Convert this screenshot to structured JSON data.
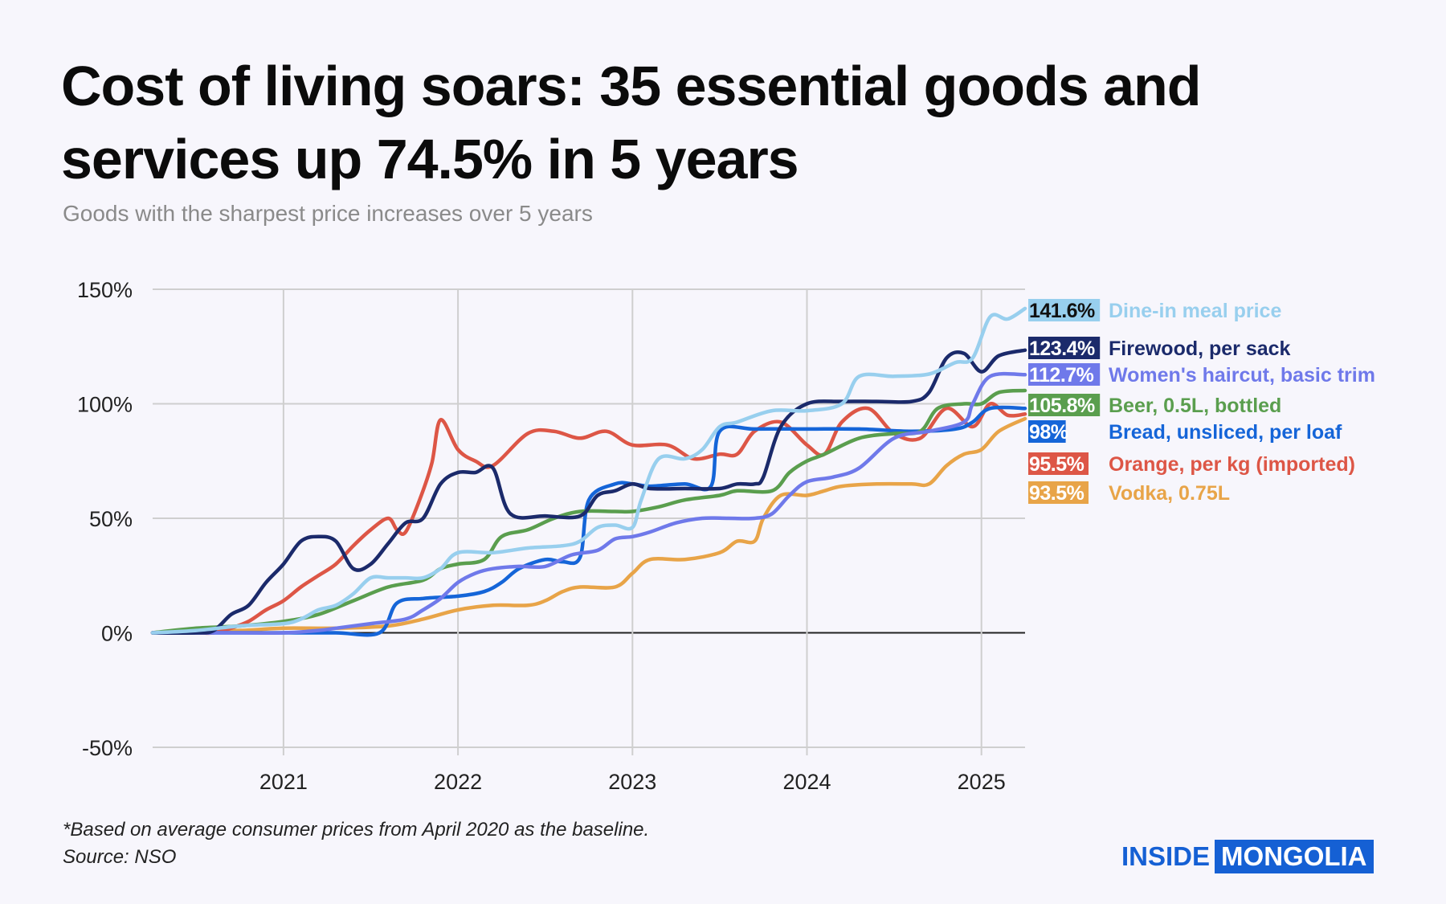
{
  "header": {
    "title": "Cost of living soars: 35 essential goods and services up 74.5% in 5 years",
    "subtitle": "Goods with the sharpest price increases over 5 years"
  },
  "footer": {
    "note": "*Based on average consumer prices from April 2020 as the baseline.",
    "source": "Source: NSO",
    "logo_left": "INSIDE",
    "logo_right": "MONGOLIA"
  },
  "chart_data": {
    "type": "line",
    "title": "Cost of living soars: 35 essential goods and services up 74.5% in 5 years",
    "subtitle": "Goods with the sharpest price increases over 5 years",
    "xlabel": "",
    "ylabel": "",
    "xlim": [
      2020.25,
      2025.25
    ],
    "ylim": [
      -50,
      150
    ],
    "yticks": [
      -50,
      0,
      50,
      100,
      150
    ],
    "ytick_labels": [
      "-50%",
      "0%",
      "50%",
      "100%",
      "150%"
    ],
    "xticks": [
      2021,
      2022,
      2023,
      2024,
      2025
    ],
    "xtick_labels": [
      "2021",
      "2022",
      "2023",
      "2024",
      "2025"
    ],
    "grid": true,
    "legend": "right-end labels",
    "series": [
      {
        "name": "Dine-in meal price",
        "label": "141.6%",
        "color": "#98cfee",
        "x": [
          2020.25,
          2020.5,
          2020.75,
          2021,
          2021.1,
          2021.2,
          2021.3,
          2021.4,
          2021.5,
          2021.6,
          2021.7,
          2021.8,
          2021.9,
          2022,
          2022.2,
          2022.4,
          2022.6,
          2022.7,
          2022.8,
          2022.9,
          2023,
          2023.05,
          2023.15,
          2023.3,
          2023.4,
          2023.5,
          2023.6,
          2023.8,
          2024,
          2024.2,
          2024.3,
          2024.5,
          2024.7,
          2024.85,
          2024.95,
          2025.05,
          2025.15,
          2025.25
        ],
        "y": [
          0,
          1,
          3,
          4,
          6,
          10,
          12,
          17,
          24,
          24,
          24,
          24,
          28,
          35,
          35,
          37,
          38,
          40,
          46,
          47,
          46,
          58,
          76,
          76,
          80,
          90,
          92,
          97,
          97,
          100,
          112,
          112,
          113,
          118,
          120,
          138,
          137,
          141.6
        ]
      },
      {
        "name": "Firewood, per sack",
        "label": "123.4%",
        "color": "#1b2a6b",
        "x": [
          2020.25,
          2020.5,
          2020.6,
          2020.7,
          2020.8,
          2020.9,
          2021,
          2021.1,
          2021.2,
          2021.3,
          2021.4,
          2021.5,
          2021.6,
          2021.7,
          2021.8,
          2021.9,
          2022,
          2022.1,
          2022.2,
          2022.3,
          2022.5,
          2022.7,
          2022.8,
          2022.9,
          2023,
          2023.1,
          2023.3,
          2023.5,
          2023.6,
          2023.7,
          2023.75,
          2023.85,
          2024,
          2024.2,
          2024.4,
          2024.6,
          2024.7,
          2024.8,
          2024.9,
          2025,
          2025.1,
          2025.25
        ],
        "y": [
          0,
          0,
          1,
          8,
          12,
          22,
          30,
          40,
          42,
          40,
          28,
          30,
          39,
          48,
          50,
          65,
          70,
          70,
          72,
          52,
          51,
          51,
          60,
          62,
          65,
          63,
          63,
          63,
          65,
          65,
          68,
          90,
          100,
          101,
          101,
          101,
          105,
          120,
          122,
          114,
          121,
          123.4
        ]
      },
      {
        "name": "Women's haircut, basic trim",
        "label": "112.7%",
        "color": "#6f79ea",
        "x": [
          2020.25,
          2020.5,
          2020.75,
          2021,
          2021.2,
          2021.3,
          2021.5,
          2021.7,
          2021.8,
          2021.9,
          2022,
          2022.1,
          2022.2,
          2022.35,
          2022.5,
          2022.65,
          2022.8,
          2022.9,
          2023,
          2023.1,
          2023.25,
          2023.4,
          2023.55,
          2023.7,
          2023.8,
          2023.9,
          2024,
          2024.15,
          2024.3,
          2024.5,
          2024.7,
          2024.9,
          2024.95,
          2025.05,
          2025.25
        ],
        "y": [
          0,
          0,
          0,
          0,
          1,
          2,
          4,
          6,
          10,
          15,
          22,
          26,
          28,
          29,
          29,
          34,
          36,
          41,
          42,
          44,
          48,
          50,
          50,
          50,
          52,
          60,
          66,
          68,
          72,
          85,
          88,
          92,
          100,
          112,
          112.7
        ]
      },
      {
        "name": "Beer, 0.5L, bottled",
        "label": "105.8%",
        "color": "#5a9e4e",
        "x": [
          2020.25,
          2020.5,
          2020.75,
          2021,
          2021.2,
          2021.4,
          2021.6,
          2021.8,
          2021.9,
          2022,
          2022.15,
          2022.25,
          2022.4,
          2022.55,
          2022.7,
          2022.9,
          2023,
          2023.15,
          2023.3,
          2023.5,
          2023.6,
          2023.8,
          2023.9,
          2024,
          2024.1,
          2024.3,
          2024.5,
          2024.65,
          2024.75,
          2024.9,
          2025,
          2025.1,
          2025.25
        ],
        "y": [
          0,
          2,
          3,
          5,
          8,
          14,
          20,
          23,
          28,
          30,
          32,
          42,
          45,
          50,
          53,
          53,
          53,
          55,
          58,
          60,
          62,
          62,
          70,
          75,
          78,
          85,
          87,
          88,
          98,
          100,
          100,
          105,
          105.8
        ]
      },
      {
        "name": "Bread, unsliced, per loaf",
        "label": "98%",
        "color": "#1565d8",
        "x": [
          2020.25,
          2020.5,
          2020.75,
          2021,
          2021.3,
          2021.55,
          2021.65,
          2021.8,
          2022,
          2022.15,
          2022.25,
          2022.35,
          2022.5,
          2022.6,
          2022.7,
          2022.75,
          2022.9,
          2023,
          2023.1,
          2023.3,
          2023.45,
          2023.5,
          2023.7,
          2024,
          2024.3,
          2024.6,
          2024.85,
          2024.95,
          2025.05,
          2025.25
        ],
        "y": [
          0,
          0,
          0,
          0,
          0,
          0,
          13,
          15,
          16,
          18,
          22,
          28,
          32,
          31,
          33,
          58,
          65,
          65,
          64,
          65,
          64,
          88,
          89,
          89,
          89,
          88,
          89,
          92,
          98,
          98
        ]
      },
      {
        "name": "Orange, per kg (imported)",
        "label": "95.5%",
        "color": "#dd5646",
        "x": [
          2020.25,
          2020.5,
          2020.6,
          2020.7,
          2020.8,
          2020.9,
          2021,
          2021.1,
          2021.2,
          2021.3,
          2021.4,
          2021.5,
          2021.6,
          2021.65,
          2021.7,
          2021.78,
          2021.85,
          2021.9,
          2022,
          2022.1,
          2022.2,
          2022.4,
          2022.55,
          2022.7,
          2022.85,
          2023,
          2023.2,
          2023.35,
          2023.5,
          2023.6,
          2023.7,
          2023.85,
          2024,
          2024.1,
          2024.2,
          2024.35,
          2024.5,
          2024.65,
          2024.8,
          2024.95,
          2025.05,
          2025.15,
          2025.25
        ],
        "y": [
          0,
          0,
          0,
          2,
          5,
          10,
          14,
          20,
          25,
          30,
          38,
          45,
          50,
          45,
          44,
          58,
          74,
          93,
          80,
          75,
          73,
          87,
          88,
          85,
          88,
          82,
          82,
          76,
          78,
          78,
          88,
          92,
          82,
          78,
          92,
          98,
          87,
          85,
          98,
          90,
          100,
          95,
          95.5
        ]
      },
      {
        "name": "Vodka, 0.75L",
        "label": "93.5%",
        "color": "#e8a448",
        "x": [
          2020.25,
          2020.5,
          2020.75,
          2021,
          2021.3,
          2021.6,
          2021.8,
          2022,
          2022.2,
          2022.4,
          2022.5,
          2022.6,
          2022.7,
          2022.9,
          2023,
          2023.1,
          2023.3,
          2023.5,
          2023.6,
          2023.7,
          2023.75,
          2023.85,
          2024,
          2024.1,
          2024.2,
          2024.4,
          2024.6,
          2024.7,
          2024.8,
          2024.9,
          2025,
          2025.1,
          2025.25
        ],
        "y": [
          0,
          1,
          1,
          2,
          2,
          3,
          6,
          10,
          12,
          12,
          14,
          18,
          20,
          20,
          26,
          32,
          32,
          35,
          40,
          40,
          50,
          60,
          60,
          62,
          64,
          65,
          65,
          65,
          73,
          78,
          80,
          88,
          93.5
        ]
      }
    ]
  }
}
